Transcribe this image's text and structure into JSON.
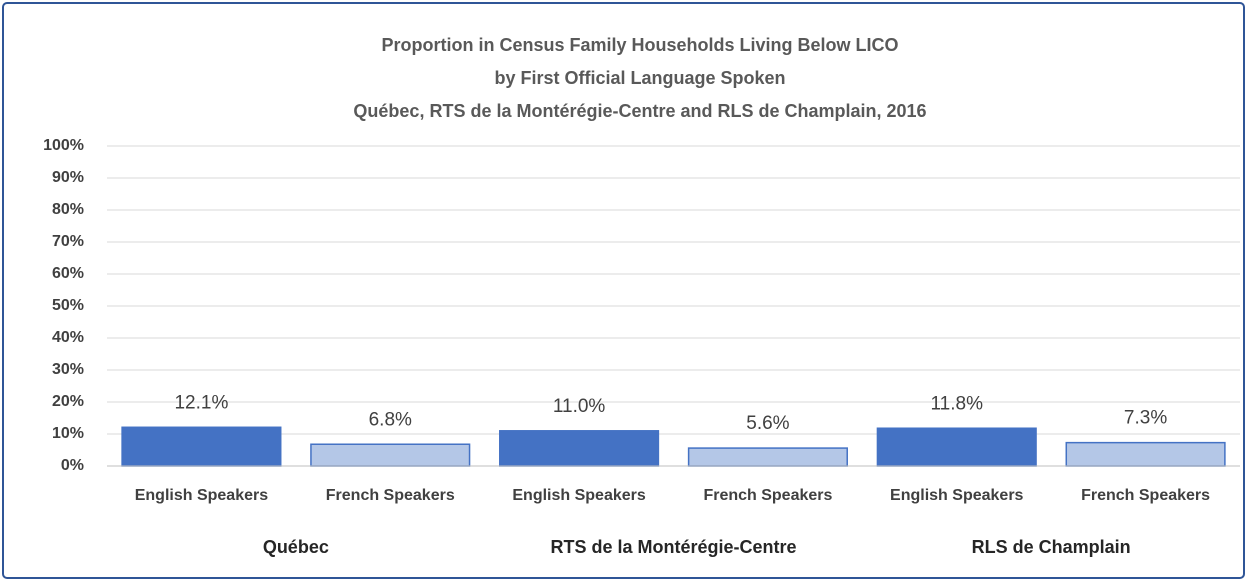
{
  "chart_data": {
    "type": "bar",
    "title": [
      "Proportion in Census Family Households Living Below LICO",
      "by First Official Language Spoken",
      "Québec, RTS de la Montérégie-Centre and RLS de Champlain, 2016"
    ],
    "categories": [
      "Québec",
      "RTS de la Montérégie-Centre",
      "RLS de Champlain"
    ],
    "series": [
      {
        "name": "English Speakers",
        "color": "#4472c4",
        "values": [
          12.1,
          11.0,
          11.8
        ],
        "value_labels": [
          "12.1%",
          "11.0%",
          "11.8%"
        ]
      },
      {
        "name": "French Speakers",
        "color": "#b4c7e7",
        "values": [
          6.8,
          5.6,
          7.3
        ],
        "value_labels": [
          "6.8%",
          "5.6%",
          "7.3%"
        ]
      }
    ],
    "ylim": [
      0,
      100
    ],
    "yticks": [
      {
        "value": 0,
        "label": "0%"
      },
      {
        "value": 10,
        "label": "10%"
      },
      {
        "value": 20,
        "label": "20%"
      },
      {
        "value": 30,
        "label": "30%"
      },
      {
        "value": 40,
        "label": "40%"
      },
      {
        "value": 50,
        "label": "50%"
      },
      {
        "value": 60,
        "label": "60%"
      },
      {
        "value": 70,
        "label": "70%"
      },
      {
        "value": 80,
        "label": "80%"
      },
      {
        "value": 90,
        "label": "90%"
      },
      {
        "value": 100,
        "label": "100%"
      }
    ],
    "grid": true
  }
}
